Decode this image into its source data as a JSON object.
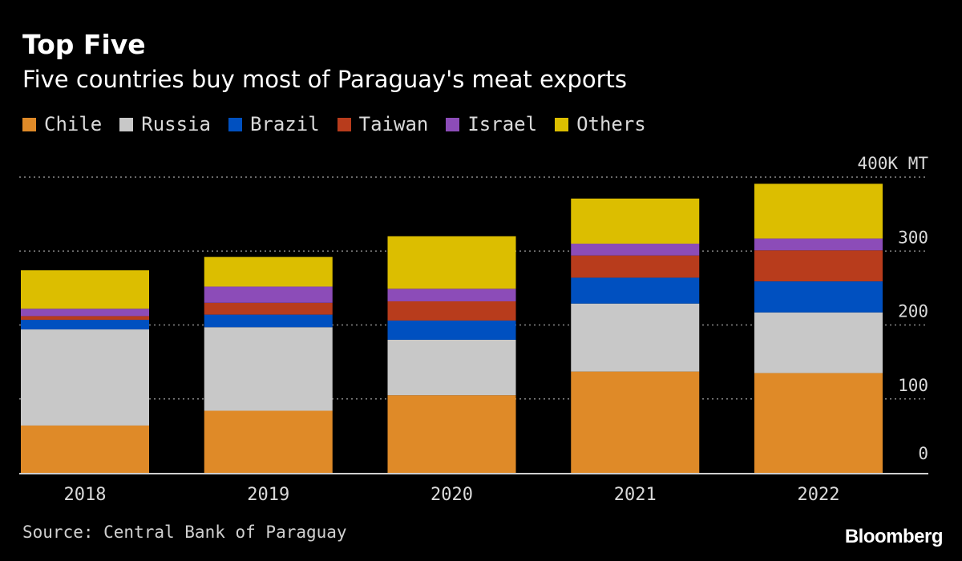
{
  "title": "Top Five",
  "subtitle": "Five countries buy most of Paraguay's meat exports",
  "source": "Source: Central Bank of Paraguay",
  "brand": "Bloomberg",
  "chart_data": {
    "type": "bar",
    "stacked": true,
    "categories": [
      "2018",
      "2019",
      "2020",
      "2021",
      "2022"
    ],
    "series": [
      {
        "name": "Chile",
        "color": "#df8a28",
        "values": [
          64,
          84,
          105,
          137,
          135
        ]
      },
      {
        "name": "Russia",
        "color": "#c8c8c8",
        "values": [
          130,
          113,
          75,
          92,
          82
        ]
      },
      {
        "name": "Brazil",
        "color": "#0050c0",
        "values": [
          13,
          17,
          26,
          35,
          42
        ]
      },
      {
        "name": "Taiwan",
        "color": "#b83c1c",
        "values": [
          5,
          16,
          26,
          30,
          42
        ]
      },
      {
        "name": "Israel",
        "color": "#8c4cb8",
        "values": [
          10,
          22,
          17,
          16,
          16
        ]
      },
      {
        "name": "Others",
        "color": "#dcbe00",
        "values": [
          52,
          40,
          71,
          61,
          74
        ]
      }
    ],
    "ylim": [
      0,
      400
    ],
    "y_ticks": [
      "0",
      "100",
      "200",
      "300",
      "400K MT"
    ],
    "grid": true,
    "legend_position": "top-left",
    "ylabel": "",
    "xlabel": ""
  }
}
